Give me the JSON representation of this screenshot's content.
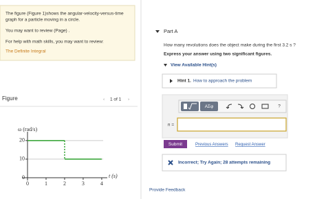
{
  "problem": {
    "lines": [
      "The figure (Figure 1)shows the angular-velocity-versus-time",
      "graph for a particle moving in a circle.",
      "You may want to review (Page) .",
      "For help with math skills, you may want to review:"
    ],
    "link": "The Definite Integral"
  },
  "figure": {
    "heading": "Figure",
    "pager": "1 of 1",
    "chart": {
      "type": "line",
      "ylabel": "ω (rad/s)",
      "xlabel": "t (s)",
      "x": [
        0,
        2,
        2,
        4
      ],
      "values": [
        20,
        20,
        10,
        10
      ],
      "color": "#2ca02c",
      "xlim": [
        0,
        4.3
      ],
      "ylim": [
        0,
        24
      ],
      "xticks": [
        0,
        1,
        2,
        3,
        4
      ],
      "yticks": [
        0,
        10,
        20
      ],
      "grid": true
    }
  },
  "part": {
    "title": "Part A",
    "question": "How many revolutions does the object make during the first 3.2 s ?",
    "instruction": "Express your answer using two significant figures.",
    "hints_toggle": "View Available Hint(s)",
    "hint_label": "Hint 1.",
    "hint_text": "How to approach the problem",
    "toolbar": [
      "ΑΣφ",
      "?"
    ],
    "answer_label": "n =",
    "submit": "Submit",
    "links": [
      "Previous Answers",
      "Request Answer"
    ],
    "feedback": "Incorrect; Try Again; 28 attempts remaining"
  },
  "footer": "Provide Feedback"
}
